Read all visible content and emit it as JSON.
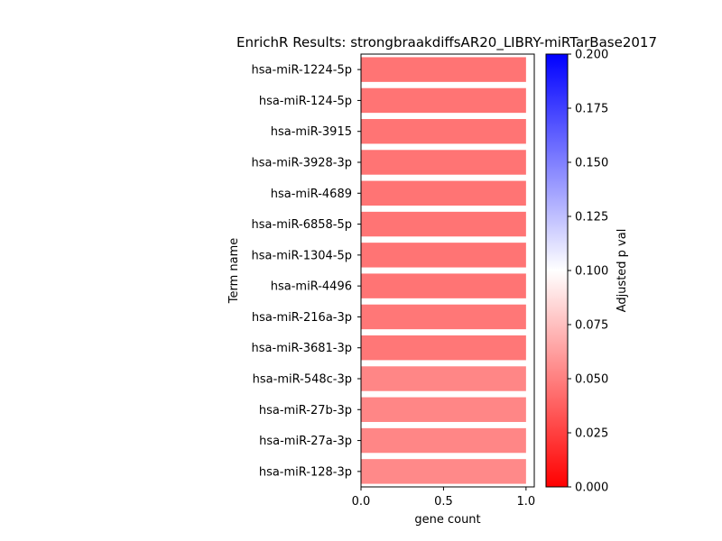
{
  "chart_data": {
    "type": "bar",
    "orientation": "horizontal",
    "title": "EnrichR Results: strongbraakdiffsAR20_LIBRY-miRTarBase2017",
    "xlabel": "gene count",
    "ylabel": "Term name",
    "xlim": [
      0,
      1.05
    ],
    "xticks": [
      "0.0",
      "0.5",
      "1.0"
    ],
    "xtick_values": [
      0,
      0.5,
      1.0
    ],
    "grid": false,
    "legend": "none",
    "categories": [
      "hsa-miR-1224-5p",
      "hsa-miR-124-5p",
      "hsa-miR-3915",
      "hsa-miR-3928-3p",
      "hsa-miR-4689",
      "hsa-miR-6858-5p",
      "hsa-miR-1304-5p",
      "hsa-miR-4496",
      "hsa-miR-216a-3p",
      "hsa-miR-3681-3p",
      "hsa-miR-548c-3p",
      "hsa-miR-27b-3p",
      "hsa-miR-27a-3p",
      "hsa-miR-128-3p"
    ],
    "values": [
      1,
      1,
      1,
      1,
      1,
      1,
      1,
      1,
      1,
      1,
      1,
      1,
      1,
      1
    ],
    "adjusted_p_values": [
      0.027,
      0.027,
      0.027,
      0.027,
      0.027,
      0.027,
      0.027,
      0.027,
      0.029,
      0.029,
      0.037,
      0.037,
      0.037,
      0.038
    ],
    "colorbar": {
      "label": "Adjusted p val",
      "range": [
        0,
        0.2
      ],
      "colors": [
        "#ff0000",
        "#ffffff",
        "#0000ff"
      ],
      "tick_values": [
        0,
        0.025,
        0.05,
        0.075,
        0.1,
        0.125,
        0.15,
        0.175,
        0.2
      ],
      "tick_labels": [
        "0.000",
        "0.025",
        "0.050",
        "0.075",
        "0.100",
        "0.125",
        "0.150",
        "0.175",
        "0.200"
      ]
    }
  }
}
